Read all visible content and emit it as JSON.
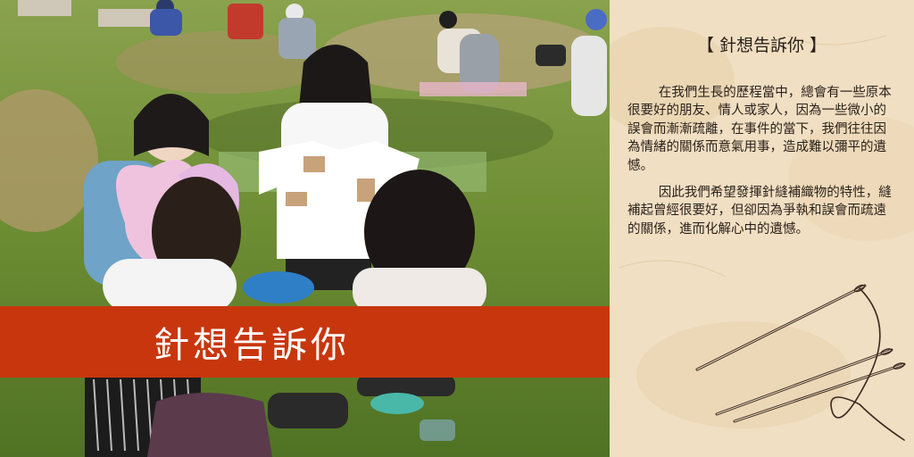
{
  "banner": {
    "title": "針想告訴你"
  },
  "panel": {
    "heading": "【 針想告訴你 】",
    "paragraphs": [
      "在我們生長的歷程當中，總會有一些原本很要好的朋友、情人或家人，因為一些微小的誤會而漸漸疏離，在事件的當下，我們往往因為情緒的關係而意氣用事，造成難以彌平的遺憾。",
      "因此我們希望發揮針縫補織物的特性，縫補起曾經很要好，但卻因為爭執和誤會而疏遠的關係，進而化解心中的遺憾。"
    ]
  },
  "colors": {
    "banner": "#c8360e",
    "panel_background": "#f1dfc3",
    "text": "#2b211a"
  },
  "icons": [
    "needles-icon"
  ]
}
